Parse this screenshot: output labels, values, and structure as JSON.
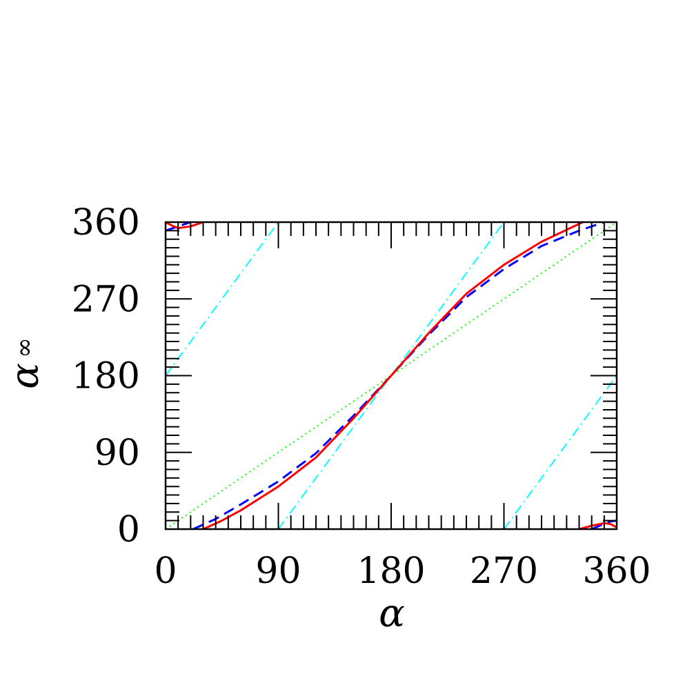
{
  "chart_data": {
    "type": "line",
    "xlabel": "α",
    "ylabel": "α",
    "ylabel_subscript": "∞",
    "xlim": [
      0,
      360
    ],
    "ylim": [
      0,
      360
    ],
    "x_ticks": [
      "0",
      "90",
      "180",
      "270",
      "360"
    ],
    "y_ticks": [
      "0",
      "90",
      "180",
      "270",
      "360"
    ],
    "grid": false,
    "legend": "none",
    "series": [
      {
        "color": "#00ff00",
        "style": "dotted",
        "points": [
          [
            0,
            0
          ],
          [
            360,
            360
          ]
        ]
      },
      {
        "color": "#00ffff",
        "style": "dash-dot",
        "segments": [
          [
            [
              0,
              180
            ],
            [
              90,
              360
            ]
          ],
          [
            [
              90,
              0
            ],
            [
              270,
              360
            ]
          ],
          [
            [
              270,
              0
            ],
            [
              360,
              180
            ]
          ]
        ]
      },
      {
        "color": "#0000ff",
        "style": "dashed",
        "segments": [
          [
            [
              0,
              350
            ],
            [
              20,
              360
            ]
          ],
          [
            [
              22,
              0
            ],
            [
              40,
              12
            ],
            [
              60,
              29
            ],
            [
              90,
              56
            ],
            [
              120,
              89
            ],
            [
              150,
              133
            ],
            [
              180,
              180
            ],
            [
              210,
              228
            ],
            [
              240,
              272
            ],
            [
              270,
              305
            ],
            [
              300,
              332
            ],
            [
              330,
              350
            ],
            [
              350,
              360
            ]
          ],
          [
            [
              340,
              0
            ],
            [
              348,
              5
            ],
            [
              355,
              9
            ],
            [
              360,
              10
            ]
          ]
        ]
      },
      {
        "color": "#ff0000",
        "style": "solid",
        "segments": [
          [
            [
              0,
              360
            ],
            [
              5,
              356
            ],
            [
              10,
              353
            ],
            [
              20,
              355
            ],
            [
              30,
              360
            ]
          ],
          [
            [
              30,
              0
            ],
            [
              45,
              10
            ],
            [
              60,
              22
            ],
            [
              90,
              50
            ],
            [
              120,
              84
            ],
            [
              150,
              130
            ],
            [
              180,
              180
            ],
            [
              210,
              230
            ],
            [
              240,
              276
            ],
            [
              270,
              310
            ],
            [
              300,
              337
            ],
            [
              330,
              358
            ],
            [
              333,
              360
            ]
          ],
          [
            [
              330,
              0
            ],
            [
              340,
              4
            ],
            [
              350,
              7
            ],
            [
              355,
              6
            ],
            [
              360,
              2
            ]
          ]
        ]
      }
    ]
  }
}
